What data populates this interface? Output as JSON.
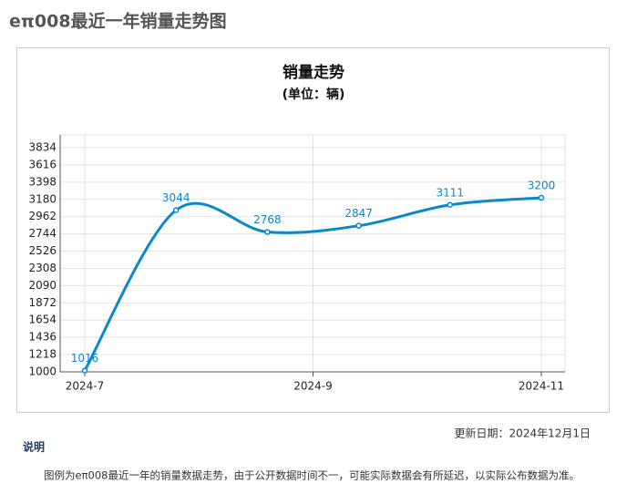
{
  "page_title": "eπ008最近一年销量走势图",
  "chart_data": {
    "type": "line",
    "title": "销量走势",
    "subtitle": "(单位：辆)",
    "x": [
      0,
      0.8,
      1.6,
      2.4,
      3.2,
      4
    ],
    "xlim": [
      0,
      4
    ],
    "xticks": [
      {
        "value": 0,
        "label": "2024-7"
      },
      {
        "value": 2,
        "label": "2024-9"
      },
      {
        "value": 4,
        "label": "2024-11"
      }
    ],
    "series": [
      {
        "name": "销量",
        "color": "#0a88cc",
        "values": [
          1016,
          3044,
          2768,
          2847,
          3111,
          3200
        ]
      }
    ],
    "ylim": [
      1000,
      3834
    ],
    "yticks": [
      1000,
      1218,
      1436,
      1654,
      1872,
      2090,
      2308,
      2526,
      2744,
      2962,
      3180,
      3398,
      3616,
      3834
    ],
    "grid": true
  },
  "footer": {
    "update": "更新日期：2024年12月1日",
    "note_title": "说明",
    "note": "图例为eπ008最近一年的销量数据走势，由于公开数据时间不一，可能实际数据会有所延迟，以实际公布数据为准。"
  }
}
